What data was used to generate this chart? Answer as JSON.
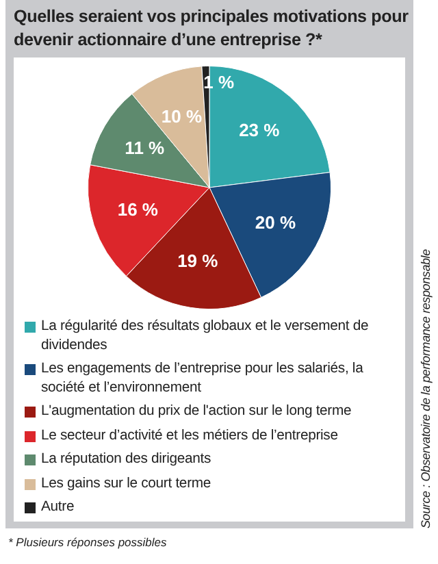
{
  "chart_data": {
    "type": "pie",
    "title": "Quelles seraient vos principales motivations pour devenir actionnaire d’une entreprise ?*",
    "categories": [
      "La régularité des résultats globaux et le versement de dividendes",
      "Les engagements de l’entreprise pour les salariés, la société et l’environnement",
      "L'augmentation du prix de l'action sur le long terme",
      "Le secteur d’activité et les métiers de l’entreprise",
      "La réputation des dirigeants",
      "Les gains sur le court terme",
      "Autre"
    ],
    "values": [
      23,
      20,
      19,
      16,
      11,
      10,
      1
    ],
    "value_labels": [
      "23 %",
      "20 %",
      "19 %",
      "16 %",
      "11 %",
      "10 %",
      "1 %"
    ],
    "colors": [
      "#31a9ac",
      "#1a4a7c",
      "#9b1a12",
      "#dc262b",
      "#5e8a6e",
      "#d9bc9a",
      "#222222"
    ],
    "legend": "bottom",
    "annotations": [
      "Source : Observatoire de la performance responsable",
      "* Plusieurs réponses possibles"
    ]
  }
}
